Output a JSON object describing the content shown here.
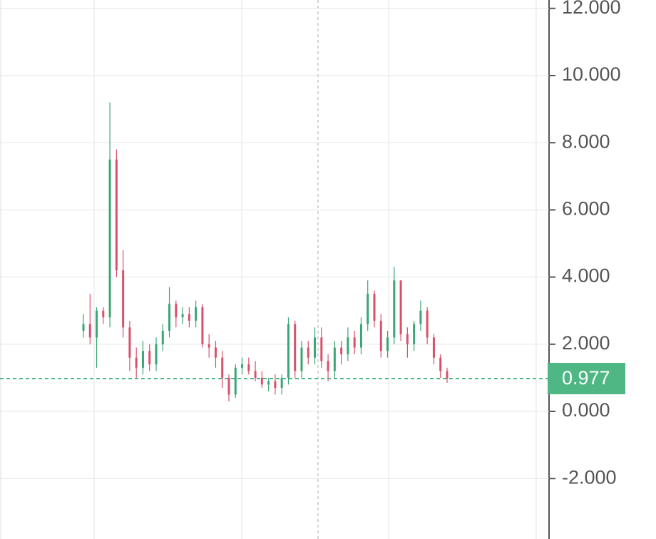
{
  "chart_data": {
    "type": "candlestick",
    "ylim": [
      -3.8,
      12.25
    ],
    "yticks": [
      {
        "value": -2,
        "label": "-2.000"
      },
      {
        "value": 0,
        "label": "0.000"
      },
      {
        "value": 2,
        "label": "2.000"
      },
      {
        "value": 4,
        "label": "4.000"
      },
      {
        "value": 6,
        "label": "6.000"
      },
      {
        "value": 8,
        "label": "8.000"
      },
      {
        "value": 10,
        "label": "10.000"
      },
      {
        "value": 12,
        "label": "12.000"
      }
    ],
    "grid": true,
    "up_color": "#3aa676",
    "down_color": "#d9506a",
    "last_price": 0.977,
    "last_price_color": "#4fb784",
    "open": [
      2.4,
      2.6,
      2.2,
      3.0,
      2.8,
      7.5,
      4.2,
      2.5,
      1.6,
      1.3,
      1.8,
      1.4,
      2.0,
      2.4,
      3.2,
      2.8,
      2.9,
      2.7,
      3.1,
      2.0,
      1.9,
      1.6,
      1.0,
      0.5,
      1.3,
      1.4,
      1.2,
      1.0,
      0.8,
      0.9,
      0.7,
      1.0,
      2.6,
      1.2,
      1.9,
      1.6,
      2.2,
      1.5,
      1.2,
      1.9,
      1.7,
      2.2,
      1.9,
      2.6,
      3.5,
      2.7,
      1.8,
      2.2,
      3.9,
      2.3,
      2.0,
      2.6,
      3.0,
      2.2,
      1.6,
      1.2
    ],
    "high": [
      2.9,
      3.5,
      3.1,
      3.1,
      9.2,
      7.8,
      4.8,
      2.7,
      1.9,
      2.1,
      2.0,
      2.2,
      2.6,
      3.7,
      3.3,
      3.1,
      3.1,
      3.3,
      3.2,
      2.3,
      2.1,
      1.8,
      1.1,
      1.4,
      1.6,
      1.6,
      1.5,
      1.2,
      1.0,
      1.1,
      1.1,
      2.8,
      2.7,
      2.1,
      2.1,
      2.5,
      2.5,
      1.7,
      2.1,
      2.1,
      2.5,
      2.4,
      2.8,
      3.9,
      3.6,
      2.9,
      2.4,
      4.3,
      3.9,
      2.5,
      2.7,
      3.3,
      3.1,
      2.3,
      1.7,
      1.3
    ],
    "low": [
      2.2,
      2.0,
      1.3,
      2.6,
      2.5,
      4.0,
      2.2,
      1.2,
      1.0,
      1.1,
      1.2,
      1.2,
      1.8,
      2.2,
      2.5,
      2.6,
      2.5,
      2.5,
      1.9,
      1.6,
      1.3,
      0.7,
      0.3,
      0.4,
      1.1,
      1.1,
      0.9,
      0.7,
      0.6,
      0.5,
      0.5,
      0.8,
      1.0,
      1.0,
      1.4,
      1.4,
      1.3,
      0.9,
      1.0,
      1.4,
      1.5,
      1.7,
      1.7,
      2.4,
      2.5,
      1.6,
      1.6,
      2.0,
      2.1,
      1.6,
      1.8,
      2.4,
      2.0,
      1.4,
      1.0,
      0.85
    ],
    "close": [
      2.6,
      2.2,
      3.0,
      2.8,
      7.5,
      4.2,
      2.5,
      1.6,
      1.3,
      1.8,
      1.4,
      2.0,
      2.4,
      3.2,
      2.8,
      2.9,
      2.7,
      3.1,
      2.0,
      1.9,
      1.6,
      1.0,
      0.5,
      1.3,
      1.4,
      1.2,
      1.0,
      0.8,
      0.9,
      0.7,
      1.0,
      2.6,
      1.2,
      1.9,
      1.6,
      2.2,
      1.5,
      1.2,
      1.9,
      1.7,
      2.2,
      1.9,
      2.6,
      3.5,
      2.7,
      1.8,
      2.2,
      3.9,
      2.3,
      2.0,
      2.6,
      3.0,
      2.2,
      1.6,
      1.2,
      0.977
    ]
  }
}
